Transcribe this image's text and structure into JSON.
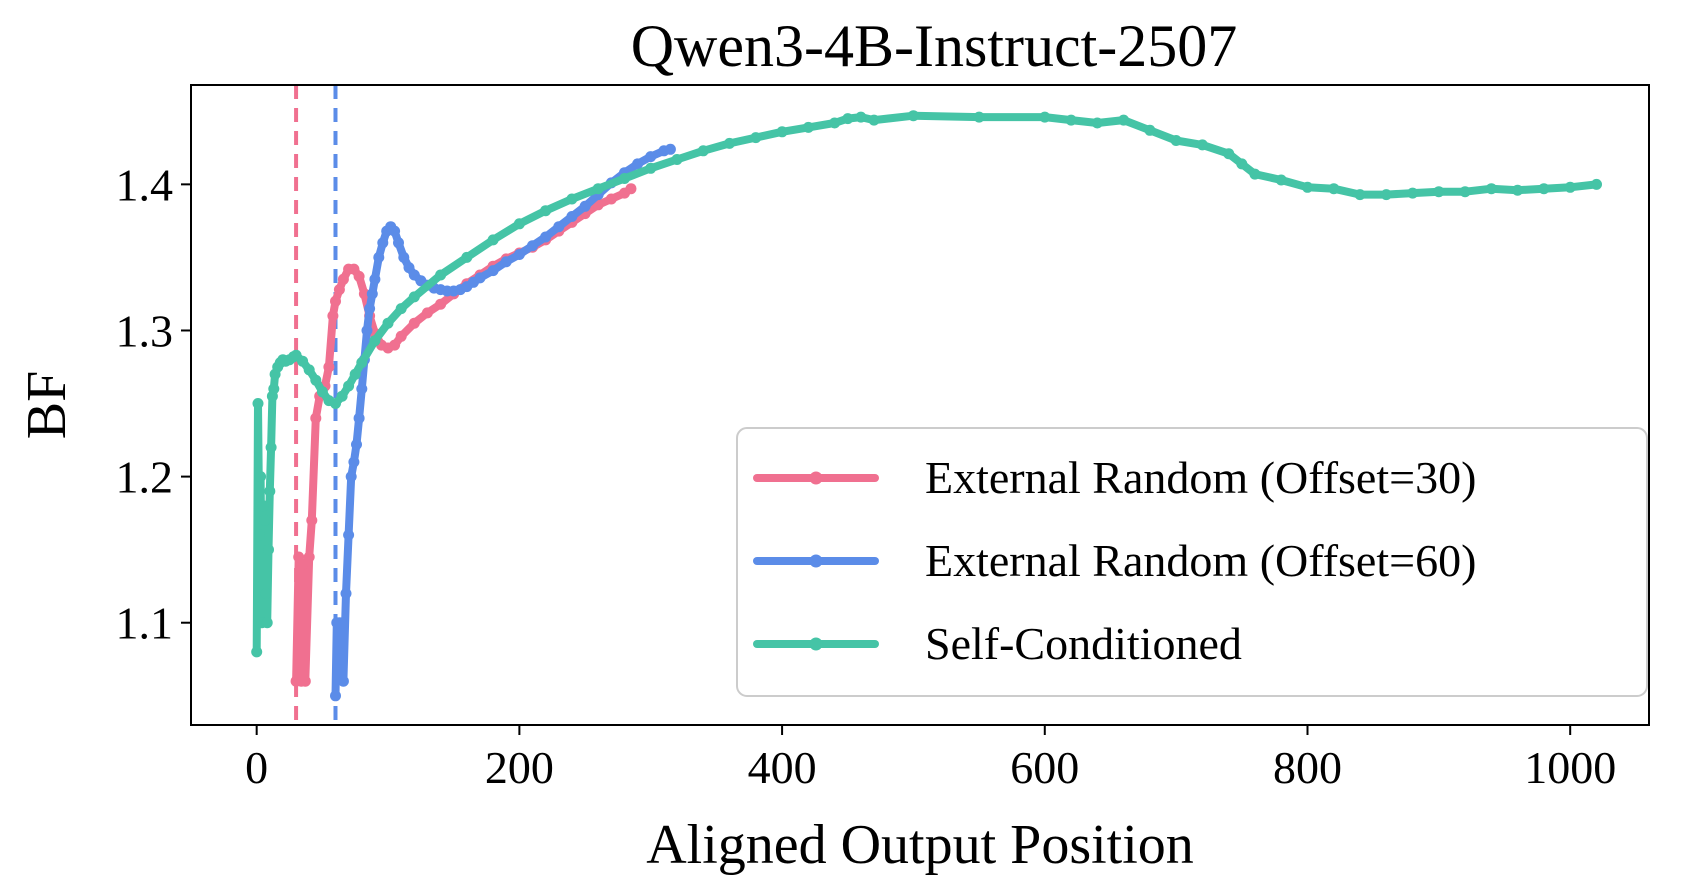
{
  "chart_data": {
    "type": "line",
    "title": "Qwen3-4B-Instruct-2507",
    "xlabel": "Aligned Output Position",
    "ylabel": "BF",
    "xlim": [
      -50,
      1060
    ],
    "ylim": [
      1.03,
      1.468
    ],
    "xticks": [
      0,
      200,
      400,
      600,
      800,
      1000
    ],
    "xtick_labels": [
      "0",
      "200",
      "400",
      "600",
      "800",
      "1000"
    ],
    "yticks": [
      1.1,
      1.2,
      1.3,
      1.4
    ],
    "ytick_labels": [
      "1.1",
      "1.2",
      "1.3",
      "1.4"
    ],
    "grid": false,
    "legend_position": "lower-right",
    "vertical_lines": [
      {
        "x": 30,
        "color": "#f07090",
        "style": "dashed"
      },
      {
        "x": 60,
        "color": "#5b8ce8",
        "style": "dashed"
      }
    ],
    "series": [
      {
        "name": "External Random (Offset=30)",
        "color": "#f07090",
        "x": [
          30,
          32,
          34,
          35,
          37,
          40,
          42,
          45,
          48,
          52,
          55,
          58,
          60,
          63,
          66,
          70,
          74,
          78,
          82,
          86,
          90,
          95,
          100,
          105,
          110,
          120,
          130,
          140,
          150,
          160,
          170,
          180,
          190,
          200,
          210,
          220,
          230,
          240,
          250,
          260,
          270,
          280,
          285
        ],
        "y": [
          1.06,
          1.145,
          1.06,
          1.14,
          1.06,
          1.145,
          1.17,
          1.24,
          1.255,
          1.262,
          1.275,
          1.31,
          1.32,
          1.328,
          1.335,
          1.342,
          1.342,
          1.337,
          1.325,
          1.31,
          1.298,
          1.29,
          1.288,
          1.29,
          1.296,
          1.305,
          1.312,
          1.318,
          1.325,
          1.332,
          1.338,
          1.344,
          1.349,
          1.353,
          1.357,
          1.362,
          1.368,
          1.374,
          1.38,
          1.386,
          1.39,
          1.394,
          1.397
        ]
      },
      {
        "name": "External Random (Offset=60)",
        "color": "#5b8ce8",
        "x": [
          60,
          61,
          62,
          63,
          64,
          65,
          66,
          68,
          70,
          72,
          74,
          76,
          78,
          80,
          82,
          84,
          86,
          88,
          90,
          93,
          96,
          99,
          102,
          105,
          108,
          112,
          116,
          120,
          125,
          130,
          135,
          140,
          145,
          150,
          155,
          160,
          165,
          170,
          180,
          190,
          200,
          210,
          220,
          230,
          240,
          250,
          260,
          270,
          280,
          290,
          300,
          310,
          315
        ],
        "y": [
          1.05,
          1.1,
          1.08,
          1.1,
          1.075,
          1.1,
          1.06,
          1.12,
          1.16,
          1.2,
          1.21,
          1.222,
          1.24,
          1.26,
          1.28,
          1.3,
          1.315,
          1.325,
          1.335,
          1.35,
          1.36,
          1.368,
          1.371,
          1.368,
          1.36,
          1.35,
          1.343,
          1.338,
          1.334,
          1.331,
          1.329,
          1.328,
          1.327,
          1.327,
          1.328,
          1.33,
          1.333,
          1.336,
          1.341,
          1.347,
          1.352,
          1.358,
          1.364,
          1.371,
          1.378,
          1.385,
          1.393,
          1.401,
          1.408,
          1.414,
          1.419,
          1.423,
          1.424
        ]
      },
      {
        "name": "Self-Conditioned",
        "color": "#45c4a6",
        "x": [
          0,
          1,
          2,
          3,
          4,
          5,
          6,
          7,
          8,
          9,
          10,
          11,
          12,
          13,
          14,
          16,
          18,
          20,
          22,
          25,
          28,
          30,
          35,
          40,
          45,
          50,
          55,
          60,
          65,
          70,
          75,
          80,
          90,
          100,
          110,
          120,
          140,
          160,
          180,
          200,
          220,
          240,
          260,
          280,
          300,
          320,
          340,
          360,
          380,
          400,
          420,
          440,
          450,
          460,
          470,
          500,
          550,
          600,
          620,
          640,
          660,
          680,
          700,
          720,
          740,
          750,
          760,
          780,
          800,
          820,
          840,
          860,
          880,
          900,
          920,
          940,
          960,
          980,
          1000,
          1020
        ],
        "y": [
          1.08,
          1.25,
          1.16,
          1.2,
          1.1,
          1.18,
          1.17,
          1.12,
          1.1,
          1.15,
          1.19,
          1.22,
          1.255,
          1.26,
          1.27,
          1.275,
          1.278,
          1.28,
          1.279,
          1.28,
          1.282,
          1.283,
          1.279,
          1.273,
          1.266,
          1.258,
          1.252,
          1.25,
          1.255,
          1.262,
          1.27,
          1.278,
          1.293,
          1.305,
          1.315,
          1.323,
          1.338,
          1.35,
          1.362,
          1.373,
          1.382,
          1.39,
          1.397,
          1.404,
          1.411,
          1.417,
          1.423,
          1.428,
          1.432,
          1.436,
          1.439,
          1.442,
          1.445,
          1.446,
          1.444,
          1.447,
          1.446,
          1.446,
          1.444,
          1.442,
          1.444,
          1.437,
          1.43,
          1.427,
          1.421,
          1.414,
          1.407,
          1.403,
          1.398,
          1.397,
          1.393,
          1.393,
          1.394,
          1.395,
          1.395,
          1.397,
          1.396,
          1.397,
          1.398,
          1.4
        ]
      }
    ]
  }
}
